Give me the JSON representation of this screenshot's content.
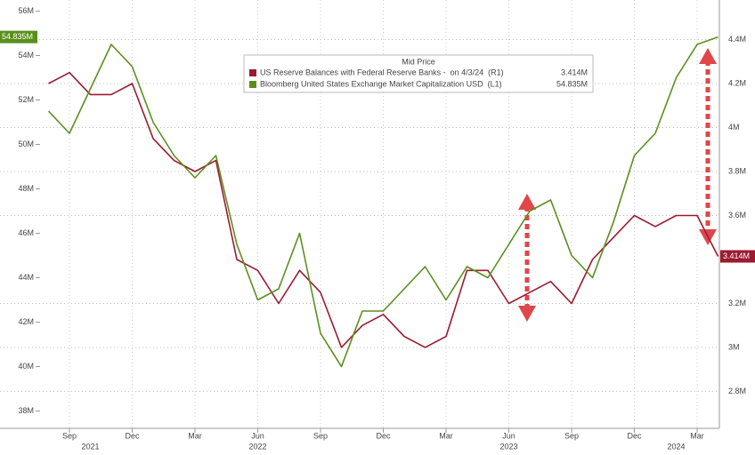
{
  "chart_data": {
    "type": "line",
    "legend_title": "Mid Price",
    "x": [
      "2021-08",
      "2021-09",
      "2021-10",
      "2021-11",
      "2021-12",
      "2022-01",
      "2022-02",
      "2022-03",
      "2022-04",
      "2022-05",
      "2022-06",
      "2022-07",
      "2022-08",
      "2022-09",
      "2022-10",
      "2022-11",
      "2022-12",
      "2023-01",
      "2023-02",
      "2023-03",
      "2023-04",
      "2023-05",
      "2023-06",
      "2023-07",
      "2023-08",
      "2023-09",
      "2023-10",
      "2023-11",
      "2023-12",
      "2024-01",
      "2024-02",
      "2024-03",
      "2024-04"
    ],
    "series": [
      {
        "name": "US Reserve Balances with Federal Reserve Banks -  on 4/3/24  (R1)",
        "color": "#9b1b30",
        "axis": "y2",
        "last_label": "3.414M",
        "values": [
          4.2,
          4.25,
          4.15,
          4.15,
          4.2,
          3.95,
          3.85,
          3.8,
          3.85,
          3.4,
          3.35,
          3.2,
          3.35,
          3.25,
          3.0,
          3.1,
          3.15,
          3.05,
          3.0,
          3.05,
          3.35,
          3.35,
          3.2,
          3.25,
          3.3,
          3.2,
          3.4,
          3.5,
          3.6,
          3.55,
          3.6,
          3.6,
          3.414
        ]
      },
      {
        "name": "Bloomberg United States Exchange Market Capitalization USD  (L1)",
        "color": "#5a8f1e",
        "axis": "y",
        "last_label": "54.835M",
        "values": [
          51.5,
          50.5,
          52.5,
          54.5,
          53.5,
          51,
          49.5,
          48.5,
          49.5,
          45.5,
          43,
          43.5,
          46,
          41.5,
          40,
          42.5,
          42.5,
          43.5,
          44.5,
          43,
          44.5,
          44,
          45.5,
          47,
          47.5,
          45,
          44,
          46.5,
          49.5,
          50.5,
          53,
          54.5,
          54.835
        ]
      }
    ],
    "xlim": [
      "2021-07",
      "2024-04"
    ],
    "xticks": [
      {
        "value": "2021-09",
        "label": "Sep"
      },
      {
        "value": "2021-12",
        "label": "Dec"
      },
      {
        "value": "2022-03",
        "label": "Mar"
      },
      {
        "value": "2022-06",
        "label": "Jun"
      },
      {
        "value": "2022-09",
        "label": "Sep"
      },
      {
        "value": "2022-12",
        "label": "Dec"
      },
      {
        "value": "2023-03",
        "label": "Mar"
      },
      {
        "value": "2023-06",
        "label": "Jun"
      },
      {
        "value": "2023-09",
        "label": "Sep"
      },
      {
        "value": "2023-12",
        "label": "Dec"
      },
      {
        "value": "2024-03",
        "label": "Mar"
      }
    ],
    "year_labels": [
      {
        "value": "2021-10",
        "label": "2021"
      },
      {
        "value": "2022-06",
        "label": "2022"
      },
      {
        "value": "2023-06",
        "label": "2023"
      },
      {
        "value": "2024-02",
        "label": "2024"
      }
    ],
    "ylim": [
      37.2,
      56.5
    ],
    "yticks": [
      {
        "value": 38,
        "label": "38M"
      },
      {
        "value": 40,
        "label": "40M"
      },
      {
        "value": 42,
        "label": "42M"
      },
      {
        "value": 44,
        "label": "44M"
      },
      {
        "value": 46,
        "label": "46M"
      },
      {
        "value": 48,
        "label": "48M"
      },
      {
        "value": 50,
        "label": "50M"
      },
      {
        "value": 52,
        "label": "52M"
      },
      {
        "value": 54,
        "label": "54M"
      },
      {
        "value": 56,
        "label": "56M"
      }
    ],
    "y2lim": [
      2.63,
      4.58
    ],
    "y2ticks": [
      {
        "value": 2.8,
        "label": "2.8M"
      },
      {
        "value": 3,
        "label": "3M"
      },
      {
        "value": 3.2,
        "label": "3.2M"
      },
      {
        "value": 3.6,
        "label": "3.6M"
      },
      {
        "value": 3.8,
        "label": "3.8M"
      },
      {
        "value": 4,
        "label": "4M"
      },
      {
        "value": 4.2,
        "label": "4.2M"
      },
      {
        "value": 4.4,
        "label": "4.4M"
      }
    ],
    "grid": true
  }
}
